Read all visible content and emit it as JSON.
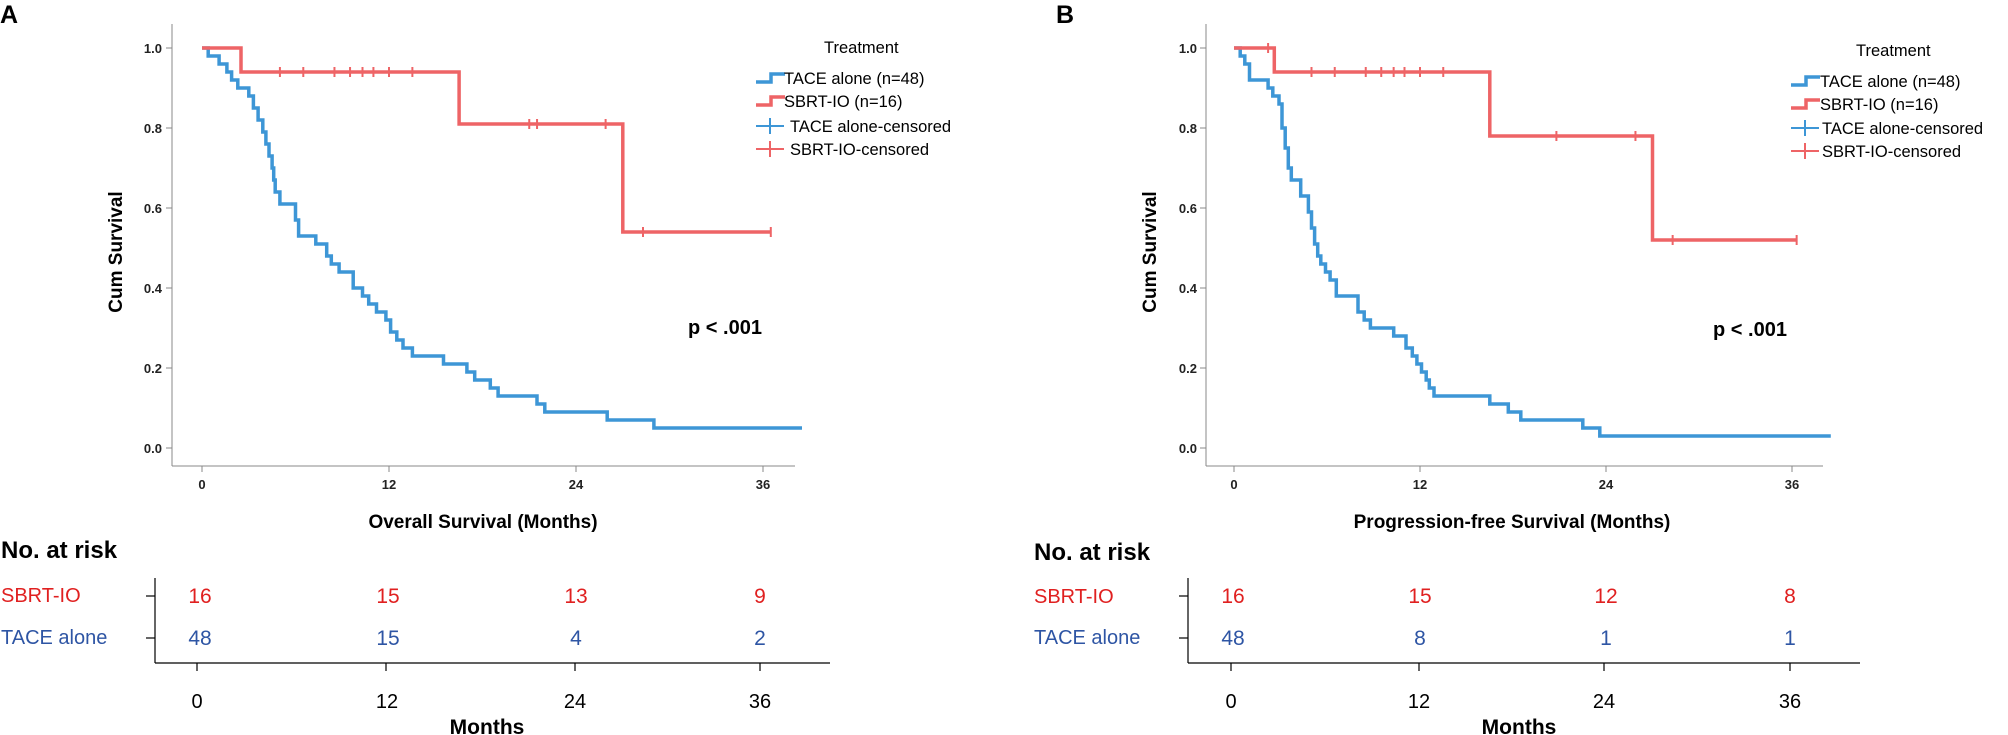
{
  "colors": {
    "sbrt": "#ee6466",
    "tace": "#3d96d6",
    "sbrt_risk": "#e02020",
    "tace_risk": "#2e55a4",
    "axis": "#777777"
  },
  "chart_data": [
    {
      "type": "line",
      "panel": "A",
      "xlabel": "Overall Survival (Months)",
      "ylabel": "Cum Survival",
      "xlim": [
        -2,
        38.5
      ],
      "ylim": [
        -0.05,
        1.06
      ],
      "x_ticks": [
        "0",
        "12",
        "24",
        "36"
      ],
      "y_ticks": [
        "0.0",
        "0.2",
        "0.4",
        "0.6",
        "0.8",
        "1.0"
      ],
      "legend_title": "Treatment",
      "legend": [
        "TACE alone (n=48)",
        "SBRT-IO (n=16)",
        "TACE alone-censored",
        "SBRT-IO-censored"
      ],
      "p_value": "p < .001",
      "series": [
        {
          "name": "SBRT-IO",
          "step_points": [
            [
              0,
              1.0
            ],
            [
              2.5,
              1.0
            ],
            [
              2.5,
              0.94
            ],
            [
              16.5,
              0.94
            ],
            [
              16.5,
              0.81
            ],
            [
              27,
              0.81
            ],
            [
              27,
              0.54
            ],
            [
              36.5,
              0.54
            ]
          ],
          "censored": [
            [
              5,
              0.94
            ],
            [
              6.5,
              0.94
            ],
            [
              8.5,
              0.94
            ],
            [
              9.5,
              0.94
            ],
            [
              10.3,
              0.94
            ],
            [
              11,
              0.94
            ],
            [
              12,
              0.94
            ],
            [
              13.5,
              0.94
            ],
            [
              21,
              0.81
            ],
            [
              21.5,
              0.81
            ],
            [
              25.9,
              0.81
            ],
            [
              28.3,
              0.54
            ],
            [
              36.5,
              0.54
            ]
          ]
        },
        {
          "name": "TACE alone",
          "step_points": [
            [
              0,
              1.0
            ],
            [
              0.4,
              1.0
            ],
            [
              0.4,
              0.98
            ],
            [
              1.1,
              0.98
            ],
            [
              1.1,
              0.96
            ],
            [
              1.6,
              0.96
            ],
            [
              1.6,
              0.94
            ],
            [
              1.9,
              0.94
            ],
            [
              1.9,
              0.92
            ],
            [
              2.3,
              0.92
            ],
            [
              2.3,
              0.9
            ],
            [
              3.0,
              0.9
            ],
            [
              3.0,
              0.88
            ],
            [
              3.3,
              0.88
            ],
            [
              3.3,
              0.85
            ],
            [
              3.6,
              0.85
            ],
            [
              3.6,
              0.82
            ],
            [
              3.9,
              0.82
            ],
            [
              3.9,
              0.79
            ],
            [
              4.1,
              0.79
            ],
            [
              4.1,
              0.76
            ],
            [
              4.3,
              0.76
            ],
            [
              4.3,
              0.73
            ],
            [
              4.5,
              0.73
            ],
            [
              4.5,
              0.7
            ],
            [
              4.6,
              0.7
            ],
            [
              4.6,
              0.67
            ],
            [
              4.7,
              0.67
            ],
            [
              4.7,
              0.64
            ],
            [
              5.0,
              0.64
            ],
            [
              5.0,
              0.61
            ],
            [
              6.0,
              0.61
            ],
            [
              6.0,
              0.57
            ],
            [
              6.2,
              0.57
            ],
            [
              6.2,
              0.53
            ],
            [
              7.3,
              0.53
            ],
            [
              7.3,
              0.51
            ],
            [
              8.0,
              0.51
            ],
            [
              8.0,
              0.48
            ],
            [
              8.3,
              0.48
            ],
            [
              8.3,
              0.46
            ],
            [
              8.8,
              0.46
            ],
            [
              8.8,
              0.44
            ],
            [
              9.7,
              0.44
            ],
            [
              9.7,
              0.4
            ],
            [
              10.3,
              0.4
            ],
            [
              10.3,
              0.38
            ],
            [
              10.7,
              0.38
            ],
            [
              10.7,
              0.36
            ],
            [
              11.2,
              0.36
            ],
            [
              11.2,
              0.34
            ],
            [
              11.8,
              0.34
            ],
            [
              11.8,
              0.32
            ],
            [
              12.1,
              0.32
            ],
            [
              12.1,
              0.29
            ],
            [
              12.5,
              0.29
            ],
            [
              12.5,
              0.27
            ],
            [
              12.9,
              0.27
            ],
            [
              12.9,
              0.25
            ],
            [
              13.5,
              0.25
            ],
            [
              13.5,
              0.23
            ],
            [
              15.5,
              0.23
            ],
            [
              15.5,
              0.21
            ],
            [
              17,
              0.21
            ],
            [
              17,
              0.19
            ],
            [
              17.5,
              0.19
            ],
            [
              17.5,
              0.17
            ],
            [
              18.5,
              0.17
            ],
            [
              18.5,
              0.15
            ],
            [
              19,
              0.15
            ],
            [
              19,
              0.13
            ],
            [
              21.5,
              0.13
            ],
            [
              21.5,
              0.11
            ],
            [
              22,
              0.11
            ],
            [
              22,
              0.09
            ],
            [
              26,
              0.09
            ],
            [
              26,
              0.07
            ],
            [
              29,
              0.07
            ],
            [
              29,
              0.05
            ],
            [
              38.5,
              0.05
            ]
          ]
        }
      ]
    },
    {
      "type": "line",
      "panel": "B",
      "xlabel": "Progression-free Survival (Months)",
      "ylabel": "Cum Survival",
      "xlim": [
        -2,
        38.5
      ],
      "ylim": [
        -0.05,
        1.06
      ],
      "x_ticks": [
        "0",
        "12",
        "24",
        "36"
      ],
      "y_ticks": [
        "0.0",
        "0.2",
        "0.4",
        "0.6",
        "0.8",
        "1.0"
      ],
      "legend_title": "Treatment",
      "legend": [
        "TACE alone (n=48)",
        "SBRT-IO (n=16)",
        "TACE alone-censored",
        "SBRT-IO-censored"
      ],
      "p_value": "p < .001",
      "series": [
        {
          "name": "SBRT-IO",
          "step_points": [
            [
              0,
              1.0
            ],
            [
              2.6,
              1.0
            ],
            [
              2.6,
              0.94
            ],
            [
              16.5,
              0.94
            ],
            [
              16.5,
              0.78
            ],
            [
              27,
              0.78
            ],
            [
              27,
              0.52
            ],
            [
              36.3,
              0.52
            ]
          ],
          "censored": [
            [
              2.2,
              1.0
            ],
            [
              5,
              0.94
            ],
            [
              6.5,
              0.94
            ],
            [
              8.5,
              0.94
            ],
            [
              9.5,
              0.94
            ],
            [
              10.3,
              0.94
            ],
            [
              11,
              0.94
            ],
            [
              12,
              0.94
            ],
            [
              13.5,
              0.94
            ],
            [
              20.8,
              0.78
            ],
            [
              25.9,
              0.78
            ],
            [
              28.3,
              0.52
            ],
            [
              36.3,
              0.52
            ]
          ]
        },
        {
          "name": "TACE alone",
          "step_points": [
            [
              0,
              1.0
            ],
            [
              0.4,
              1.0
            ],
            [
              0.4,
              0.98
            ],
            [
              0.7,
              0.98
            ],
            [
              0.7,
              0.96
            ],
            [
              1.0,
              0.96
            ],
            [
              1.0,
              0.92
            ],
            [
              2.2,
              0.92
            ],
            [
              2.2,
              0.9
            ],
            [
              2.5,
              0.9
            ],
            [
              2.5,
              0.88
            ],
            [
              2.9,
              0.88
            ],
            [
              2.9,
              0.86
            ],
            [
              3.1,
              0.86
            ],
            [
              3.1,
              0.8
            ],
            [
              3.3,
              0.8
            ],
            [
              3.3,
              0.75
            ],
            [
              3.5,
              0.75
            ],
            [
              3.5,
              0.7
            ],
            [
              3.7,
              0.7
            ],
            [
              3.7,
              0.67
            ],
            [
              4.3,
              0.67
            ],
            [
              4.3,
              0.63
            ],
            [
              4.8,
              0.63
            ],
            [
              4.8,
              0.59
            ],
            [
              5.0,
              0.59
            ],
            [
              5.0,
              0.55
            ],
            [
              5.2,
              0.55
            ],
            [
              5.2,
              0.51
            ],
            [
              5.4,
              0.51
            ],
            [
              5.4,
              0.48
            ],
            [
              5.6,
              0.48
            ],
            [
              5.6,
              0.46
            ],
            [
              5.9,
              0.46
            ],
            [
              5.9,
              0.44
            ],
            [
              6.2,
              0.44
            ],
            [
              6.2,
              0.42
            ],
            [
              6.6,
              0.42
            ],
            [
              6.6,
              0.38
            ],
            [
              8.0,
              0.38
            ],
            [
              8.0,
              0.34
            ],
            [
              8.4,
              0.34
            ],
            [
              8.4,
              0.32
            ],
            [
              8.8,
              0.32
            ],
            [
              8.8,
              0.3
            ],
            [
              10.3,
              0.3
            ],
            [
              10.3,
              0.28
            ],
            [
              11.1,
              0.28
            ],
            [
              11.1,
              0.25
            ],
            [
              11.5,
              0.25
            ],
            [
              11.5,
              0.23
            ],
            [
              11.8,
              0.23
            ],
            [
              11.8,
              0.21
            ],
            [
              12.1,
              0.21
            ],
            [
              12.1,
              0.19
            ],
            [
              12.4,
              0.19
            ],
            [
              12.4,
              0.17
            ],
            [
              12.6,
              0.17
            ],
            [
              12.6,
              0.15
            ],
            [
              12.9,
              0.15
            ],
            [
              12.9,
              0.13
            ],
            [
              16.5,
              0.13
            ],
            [
              16.5,
              0.11
            ],
            [
              17.7,
              0.11
            ],
            [
              17.7,
              0.09
            ],
            [
              18.5,
              0.09
            ],
            [
              18.5,
              0.07
            ],
            [
              22.5,
              0.07
            ],
            [
              22.5,
              0.05
            ],
            [
              23.6,
              0.05
            ],
            [
              23.6,
              0.03
            ],
            [
              38.5,
              0.03
            ]
          ]
        }
      ]
    }
  ],
  "risk_tables": [
    {
      "title": "No. at risk",
      "x_ticks": [
        "0",
        "12",
        "24",
        "36"
      ],
      "x_title": "Months",
      "rows": [
        {
          "label": "SBRT-IO",
          "values": [
            "16",
            "15",
            "13",
            "9"
          ]
        },
        {
          "label": "TACE alone",
          "values": [
            "48",
            "15",
            "4",
            "2"
          ]
        }
      ]
    },
    {
      "title": "No. at risk",
      "x_ticks": [
        "0",
        "12",
        "24",
        "36"
      ],
      "x_title": "Months",
      "rows": [
        {
          "label": "SBRT-IO",
          "values": [
            "16",
            "15",
            "12",
            "8"
          ]
        },
        {
          "label": "TACE alone",
          "values": [
            "48",
            "8",
            "1",
            "1"
          ]
        }
      ]
    }
  ]
}
